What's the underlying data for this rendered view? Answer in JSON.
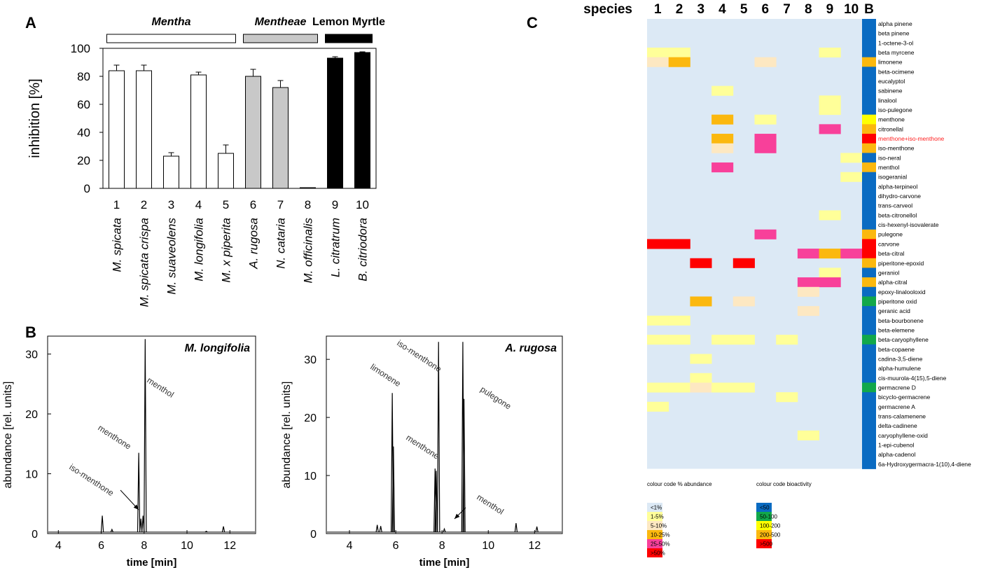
{
  "panels": {
    "a": "A",
    "b": "B",
    "c": "C"
  },
  "chart_data": [
    {
      "type": "bar",
      "panel": "A",
      "ylabel": "inhibition [%]",
      "ylim": [
        0,
        100
      ],
      "yticks": [
        0,
        20,
        40,
        60,
        80,
        100
      ],
      "groups": [
        {
          "name": "Mentha",
          "color": "#ffffff",
          "indices": [
            1,
            5
          ],
          "italic": true
        },
        {
          "name": "Mentheae",
          "color": "#c8c8c8",
          "indices": [
            6,
            8
          ],
          "italic": true
        },
        {
          "name": "Lemon Myrtle",
          "color": "#000000",
          "indices": [
            9,
            10
          ],
          "italic": false
        }
      ],
      "categories": [
        "M. spicata",
        "M. spicata crispa",
        "M. suaveolens",
        "M. longifolia",
        "M. x piperita",
        "A. rugosa",
        "N. cataria",
        "M. officinalis",
        "L. citratrum",
        "B. citriodora"
      ],
      "numbers": [
        "1",
        "2",
        "3",
        "4",
        "5",
        "6",
        "7",
        "8",
        "9",
        "10"
      ],
      "values": [
        84,
        84,
        23,
        81,
        25,
        80,
        72,
        0.5,
        93,
        97
      ],
      "errors": [
        4,
        4,
        2.5,
        2,
        6,
        5,
        5,
        0,
        1,
        0.5
      ],
      "bar_colors": [
        "#ffffff",
        "#ffffff",
        "#ffffff",
        "#ffffff",
        "#ffffff",
        "#c8c8c8",
        "#c8c8c8",
        "#c8c8c8",
        "#000000",
        "#000000"
      ]
    },
    {
      "type": "line",
      "panel": "B-left",
      "title": "M. longifolia",
      "xlabel": "time [min]",
      "ylabel": "abundance [rel. units]",
      "xlim": [
        3.5,
        13.2
      ],
      "ylim": [
        0,
        33
      ],
      "xticks": [
        4,
        6,
        8,
        10,
        12
      ],
      "yticks": [
        0,
        10,
        20,
        30
      ],
      "peaks": [
        {
          "t": 6.05,
          "h": 3
        },
        {
          "t": 6.5,
          "h": 0.7
        },
        {
          "t": 7.75,
          "h": 13.5
        },
        {
          "t": 7.85,
          "h": 2.5
        },
        {
          "t": 7.95,
          "h": 3.0
        },
        {
          "t": 8.05,
          "h": 32.5
        },
        {
          "t": 10.9,
          "h": 0.4
        },
        {
          "t": 11.7,
          "h": 1.2
        }
      ],
      "annotations": [
        "menthol",
        "menthone",
        "iso-menthone"
      ]
    },
    {
      "type": "line",
      "panel": "B-right",
      "title": "A. rugosa",
      "xlabel": "time [min]",
      "ylabel": "abundance [rel. units]",
      "xlim": [
        3,
        13.2
      ],
      "ylim": [
        0,
        34
      ],
      "xticks": [
        4,
        6,
        8,
        10,
        12
      ],
      "yticks": [
        0,
        10,
        20,
        30
      ],
      "peaks": [
        {
          "t": 5.2,
          "h": 1.5
        },
        {
          "t": 5.35,
          "h": 1.3
        },
        {
          "t": 5.85,
          "h": 24.2
        },
        {
          "t": 5.9,
          "h": 15
        },
        {
          "t": 7.7,
          "h": 11.2
        },
        {
          "t": 7.75,
          "h": 10.8
        },
        {
          "t": 7.85,
          "h": 33
        },
        {
          "t": 8.1,
          "h": 0.8
        },
        {
          "t": 8.9,
          "h": 33
        },
        {
          "t": 8.95,
          "h": 23.2
        },
        {
          "t": 11.2,
          "h": 1.8
        },
        {
          "t": 12.1,
          "h": 1.2
        }
      ],
      "annotations": [
        "iso-menthone",
        "limonene",
        "pulegone",
        "menthone",
        "menthol"
      ]
    },
    {
      "type": "heatmap",
      "panel": "C",
      "header_label": "species",
      "columns": [
        "1",
        "2",
        "3",
        "4",
        "5",
        "6",
        "7",
        "8",
        "9",
        "10"
      ],
      "bioactivity_column": "B",
      "rows": [
        "alpha pinene",
        "beta pinene",
        "1-octene-3-ol",
        "beta myrcene",
        "limonene",
        "beta-ocimene",
        "eucalyptol",
        "sabinene",
        "linalool",
        "iso-pulegone",
        "menthone",
        "citronellal",
        "menthone+iso-menthone",
        "iso-menthone",
        "iso-neral",
        "menthol",
        "isogeranial",
        "alpha-terpineol",
        "dihydro-carvone",
        "trans-carveol",
        "beta-citronellol",
        "cis-hexenyl-isovalerate",
        "pulegone",
        "carvone",
        "beta-citral",
        "piperitone-epoxid",
        "geraniol",
        "alpha-citral",
        "epoxy-linalooloxid",
        "piperitone oxid",
        "geranic acid",
        "beta-bourbonene",
        "beta-elemene",
        "beta-caryophyllene",
        "beta-copaene",
        "cadina-3,5-diene",
        "alpha-humulene",
        "cis-muurola-4(15),5-diene",
        "germacrene D",
        "bicyclo-germacrene",
        "germacrene A",
        "trans-calamenene",
        "delta-cadinene",
        "caryophyllene-oxid",
        "1-epi-cubenol",
        "alpha-cadenol",
        "6a-Hydroxygermacra-1(10),4-diene"
      ],
      "highlight_row": "menthone+iso-menthone",
      "highlight_color": "#ff2020",
      "abundance": [
        [
          0,
          0,
          0,
          0,
          0,
          0,
          0,
          0,
          0,
          0
        ],
        [
          0,
          0,
          0,
          0,
          0,
          0,
          0,
          0,
          0,
          0
        ],
        [
          0,
          0,
          0,
          0,
          0,
          0,
          0,
          0,
          0,
          0
        ],
        [
          1,
          1,
          0,
          0,
          0,
          0,
          0,
          0,
          1,
          0
        ],
        [
          2,
          3,
          0,
          0,
          0,
          2,
          0,
          0,
          0,
          0
        ],
        [
          0,
          0,
          0,
          0,
          0,
          0,
          0,
          0,
          0,
          0
        ],
        [
          0,
          0,
          0,
          0,
          0,
          0,
          0,
          0,
          0,
          0
        ],
        [
          0,
          0,
          0,
          1,
          0,
          0,
          0,
          0,
          0,
          0
        ],
        [
          0,
          0,
          0,
          0,
          0,
          0,
          0,
          0,
          1,
          0
        ],
        [
          0,
          0,
          0,
          0,
          0,
          0,
          0,
          0,
          1,
          0
        ],
        [
          0,
          0,
          0,
          3,
          0,
          1,
          0,
          0,
          0,
          0
        ],
        [
          0,
          0,
          0,
          0,
          0,
          0,
          0,
          0,
          4,
          0
        ],
        [
          0,
          0,
          0,
          3,
          0,
          4,
          0,
          0,
          0,
          0
        ],
        [
          0,
          0,
          0,
          2,
          0,
          4,
          0,
          0,
          0,
          0
        ],
        [
          0,
          0,
          0,
          0,
          0,
          0,
          0,
          0,
          0,
          1
        ],
        [
          0,
          0,
          0,
          4,
          0,
          0,
          0,
          0,
          0,
          0
        ],
        [
          0,
          0,
          0,
          0,
          0,
          0,
          0,
          0,
          0,
          1
        ],
        [
          0,
          0,
          0,
          0,
          0,
          0,
          0,
          0,
          0,
          0
        ],
        [
          0,
          0,
          0,
          0,
          0,
          0,
          0,
          0,
          0,
          0
        ],
        [
          0,
          0,
          0,
          0,
          0,
          0,
          0,
          0,
          0,
          0
        ],
        [
          0,
          0,
          0,
          0,
          0,
          0,
          0,
          0,
          1,
          0
        ],
        [
          0,
          0,
          0,
          0,
          0,
          0,
          0,
          0,
          0,
          0
        ],
        [
          0,
          0,
          0,
          0,
          0,
          4,
          0,
          0,
          0,
          0
        ],
        [
          5,
          5,
          0,
          0,
          0,
          0,
          0,
          0,
          0,
          0
        ],
        [
          0,
          0,
          0,
          0,
          0,
          0,
          0,
          4,
          3,
          4
        ],
        [
          0,
          0,
          5,
          0,
          5,
          0,
          0,
          0,
          0,
          0
        ],
        [
          0,
          0,
          0,
          0,
          0,
          0,
          0,
          0,
          1,
          0
        ],
        [
          0,
          0,
          0,
          0,
          0,
          0,
          0,
          4,
          4,
          0
        ],
        [
          0,
          0,
          0,
          0,
          0,
          0,
          0,
          2,
          0,
          0
        ],
        [
          0,
          0,
          3,
          0,
          2,
          0,
          0,
          0,
          0,
          0
        ],
        [
          0,
          0,
          0,
          0,
          0,
          0,
          0,
          2,
          0,
          0
        ],
        [
          1,
          1,
          0,
          0,
          0,
          0,
          0,
          0,
          0,
          0
        ],
        [
          0,
          0,
          0,
          0,
          0,
          0,
          0,
          0,
          0,
          0
        ],
        [
          1,
          1,
          0,
          1,
          1,
          0,
          1,
          0,
          0,
          0
        ],
        [
          0,
          0,
          0,
          0,
          0,
          0,
          0,
          0,
          0,
          0
        ],
        [
          0,
          0,
          1,
          0,
          0,
          0,
          0,
          0,
          0,
          0
        ],
        [
          0,
          0,
          0,
          0,
          0,
          0,
          0,
          0,
          0,
          0
        ],
        [
          0,
          0,
          1,
          0,
          0,
          0,
          0,
          0,
          0,
          0
        ],
        [
          1,
          1,
          2,
          1,
          1,
          0,
          0,
          0,
          0,
          0
        ],
        [
          0,
          0,
          0,
          0,
          0,
          0,
          1,
          0,
          0,
          0
        ],
        [
          1,
          0,
          0,
          0,
          0,
          0,
          0,
          0,
          0,
          0
        ],
        [
          0,
          0,
          0,
          0,
          0,
          0,
          0,
          0,
          0,
          0
        ],
        [
          0,
          0,
          0,
          0,
          0,
          0,
          0,
          0,
          0,
          0
        ],
        [
          0,
          0,
          0,
          0,
          0,
          0,
          0,
          1,
          0,
          0
        ],
        [
          0,
          0,
          0,
          0,
          0,
          0,
          0,
          0,
          0,
          0
        ],
        [
          0,
          0,
          0,
          0,
          0,
          0,
          0,
          0,
          0,
          0
        ],
        [
          0,
          0,
          0,
          0,
          0,
          0,
          0,
          0,
          0,
          0
        ]
      ],
      "bioactivity": [
        0,
        0,
        0,
        0,
        3,
        0,
        0,
        0,
        0,
        0,
        2,
        3,
        4,
        3,
        0,
        3,
        0,
        0,
        0,
        0,
        0,
        0,
        3,
        4,
        4,
        3,
        0,
        3,
        0,
        1,
        0,
        0,
        0,
        1,
        0,
        0,
        0,
        0,
        1,
        0,
        0,
        0,
        0,
        0,
        0,
        0,
        0
      ],
      "abundance_legend": {
        "title": "colour code % abundance",
        "labels": [
          "<1%",
          "1-5%",
          "5-10%",
          "10-25%",
          "25-50%",
          ">50%"
        ],
        "colors": [
          "#dce9f5",
          "#ffff99",
          "#fde8c2",
          "#fbb80f",
          "#f8409a",
          "#ff0000"
        ]
      },
      "bioactivity_legend": {
        "title": "colour code bioactivity",
        "labels": [
          "<50",
          "50-100",
          "100-200",
          "200-500",
          ">500"
        ],
        "colors": [
          "#0a6bc2",
          "#12a84b",
          "#ffff00",
          "#fbb80f",
          "#ff0000"
        ]
      }
    }
  ]
}
